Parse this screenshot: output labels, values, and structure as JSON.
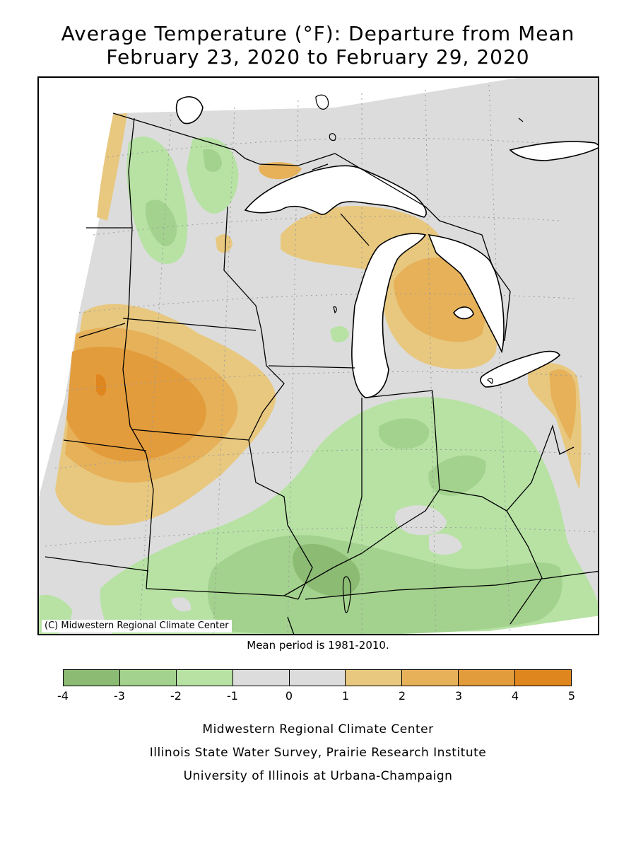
{
  "title": {
    "line1": "Average Temperature (°F): Departure from Mean",
    "line2": "February 23, 2020 to February 29, 2020"
  },
  "map": {
    "credit": "(C) Midwestern Regional Climate Center",
    "note": "Mean period is 1981-2010.",
    "colors": {
      "land_neutral": "#dcdcdc",
      "water": "#ffffff",
      "border": "#000000",
      "graticule": "#9a9a9a"
    }
  },
  "legend": {
    "ticks": [
      "-4",
      "-3",
      "-2",
      "-1",
      "0",
      "1",
      "2",
      "3",
      "4",
      "5"
    ],
    "bins": [
      {
        "range": [
          -4,
          -3
        ],
        "color": "#8cbb73"
      },
      {
        "range": [
          -3,
          -2
        ],
        "color": "#a3d28e"
      },
      {
        "range": [
          -2,
          -1
        ],
        "color": "#b7e2a4"
      },
      {
        "range": [
          -1,
          0
        ],
        "color": "#dcdcdc"
      },
      {
        "range": [
          0,
          1
        ],
        "color": "#dcdcdc"
      },
      {
        "range": [
          1,
          2
        ],
        "color": "#e8c87f"
      },
      {
        "range": [
          2,
          3
        ],
        "color": "#e6b159"
      },
      {
        "range": [
          3,
          4
        ],
        "color": "#e39c3c"
      },
      {
        "range": [
          4,
          5
        ],
        "color": "#e0861f"
      }
    ]
  },
  "footer": {
    "line1": "Midwestern Regional Climate Center",
    "line2": "Illinois State Water Survey, Prairie Research Institute",
    "line3": "University of Illinois at Urbana-Champaign"
  }
}
